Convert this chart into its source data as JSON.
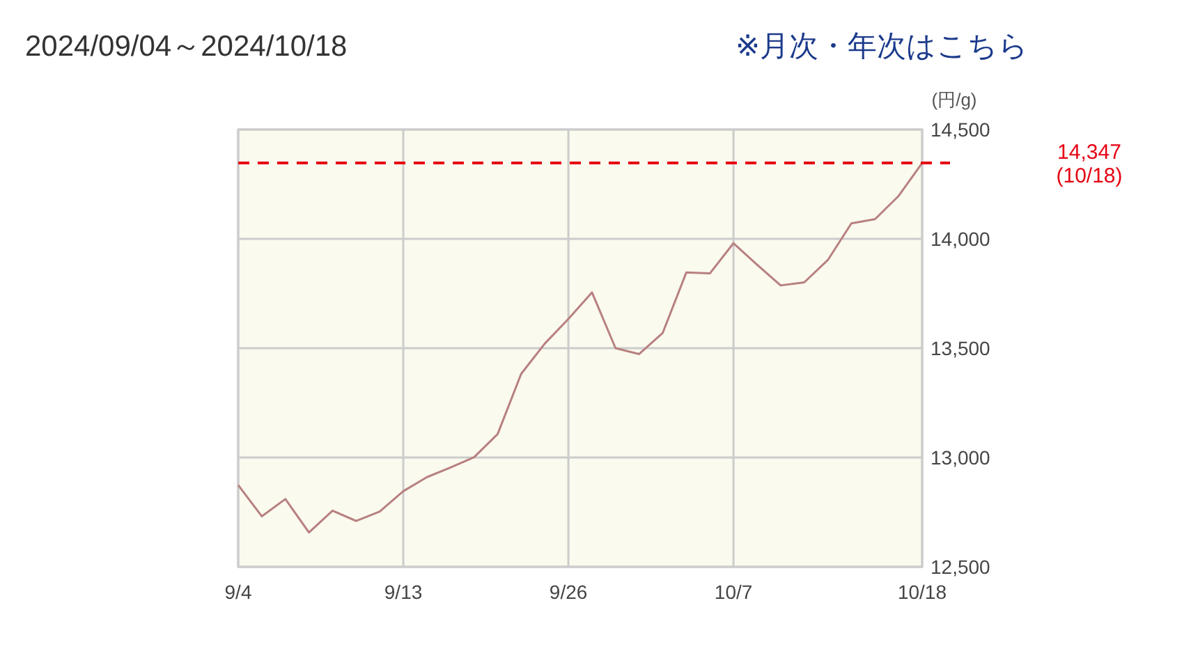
{
  "chart_data": {
    "type": "line",
    "title": "2024/09/04～2024/10/18",
    "annotations": [
      "※月次・年次はこちら"
    ],
    "ylabel": "(円/g)",
    "categories": [
      "9/4",
      null,
      null,
      null,
      null,
      null,
      null,
      "9/13",
      null,
      null,
      null,
      null,
      null,
      null,
      "9/26",
      null,
      null,
      null,
      null,
      null,
      null,
      "10/7",
      null,
      null,
      null,
      null,
      null,
      null,
      null,
      "10/18"
    ],
    "series": [
      {
        "color": "#b88080",
        "values": [
          12874,
          12731,
          12810,
          12657,
          12757,
          12710,
          12753,
          12846,
          12910,
          12954,
          13001,
          13107,
          13383,
          13521,
          13634,
          13755,
          13500,
          13473,
          13570,
          13846,
          13842,
          13980,
          13882,
          13787,
          13801,
          13903,
          14071,
          14090,
          14196,
          14347
        ]
      }
    ],
    "ylim": [
      12500,
      14500
    ],
    "yticks": [
      {
        "value": 12500,
        "label": "12,500"
      },
      {
        "value": 13000,
        "label": "13,000"
      },
      {
        "value": 13500,
        "label": "13,500"
      },
      {
        "value": 14000,
        "label": "14,000"
      },
      {
        "value": 14500,
        "label": "14,500"
      }
    ],
    "grid": true,
    "ref_lines": [
      {
        "axis": "y",
        "value": 14347,
        "label": "14,347\n(10/18)",
        "color": "#e60012",
        "line_style": "dashed"
      }
    ]
  }
}
